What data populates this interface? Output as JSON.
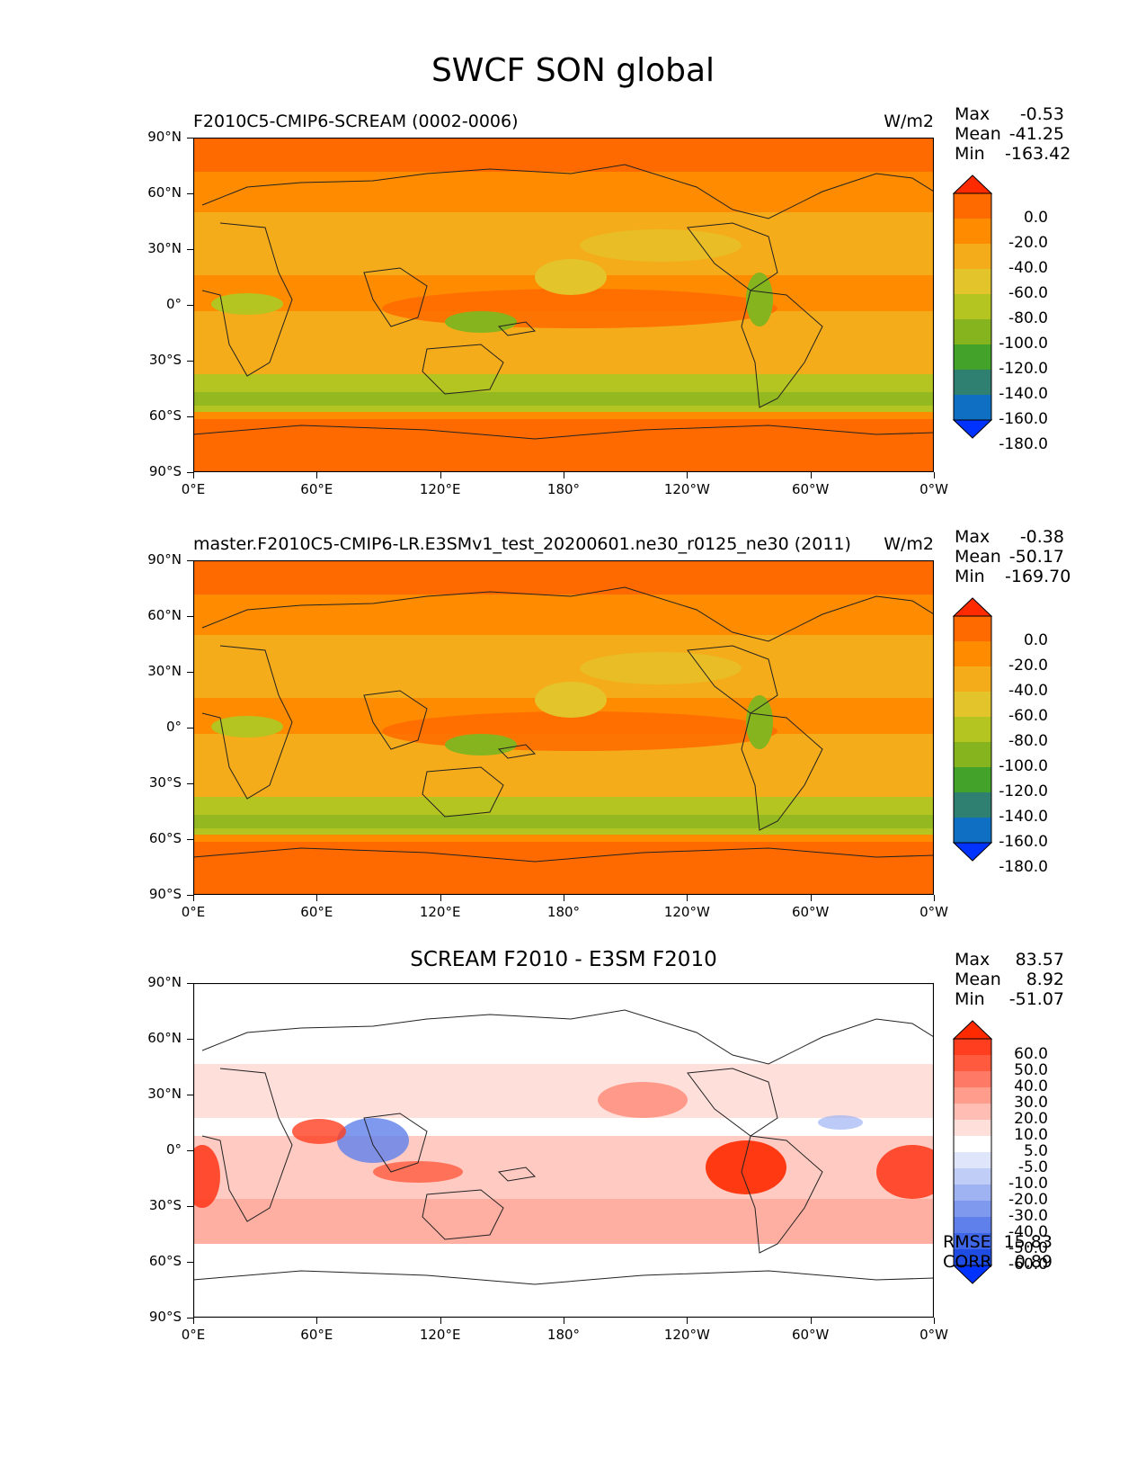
{
  "figure": {
    "title": "SWCF SON global"
  },
  "axes": {
    "lat_ticks": [
      "90°N",
      "60°N",
      "30°N",
      "0°",
      "30°S",
      "60°S",
      "90°S"
    ],
    "lon_ticks": [
      "0°E",
      "60°E",
      "120°E",
      "180°",
      "120°W",
      "60°W",
      "0°W"
    ]
  },
  "panels": [
    {
      "title_left": "F2010C5-CMIP6-SCREAM (0002-0006)",
      "title_center": "",
      "units": "W/m2",
      "stats": {
        "max_label": "Max",
        "max": "-0.53",
        "mean_label": "Mean",
        "mean": "-41.25",
        "min_label": "Min",
        "min": "-163.42"
      },
      "colorbar": {
        "ticks": [
          "0.0",
          "-20.0",
          "-40.0",
          "-60.0",
          "-80.0",
          "-100.0",
          "-120.0",
          "-140.0",
          "-160.0",
          "-180.0"
        ],
        "colors": [
          "#ff2a00",
          "#ff6a00",
          "#ff8c00",
          "#f5ac1a",
          "#e3c42b",
          "#b4c420",
          "#86b41f",
          "#43a22a",
          "#2f8070",
          "#0f6fc3",
          "#0033ff"
        ]
      },
      "map_palette": {
        "ocean": "#ff6a00",
        "warm": "#f5ac1a",
        "mid": "#e3c42b",
        "cool": "#b4c420",
        "green": "#86b41f"
      }
    },
    {
      "title_left": "master.F2010C5-CMIP6-LR.E3SMv1_test_20200601.ne30_r0125_ne30 (2011)",
      "title_center": "",
      "units": "W/m2",
      "stats": {
        "max_label": "Max",
        "max": "-0.38",
        "mean_label": "Mean",
        "mean": "-50.17",
        "min_label": "Min",
        "min": "-169.70"
      },
      "colorbar": {
        "ticks": [
          "0.0",
          "-20.0",
          "-40.0",
          "-60.0",
          "-80.0",
          "-100.0",
          "-120.0",
          "-140.0",
          "-160.0",
          "-180.0"
        ],
        "colors": [
          "#ff2a00",
          "#ff6a00",
          "#ff8c00",
          "#f5ac1a",
          "#e3c42b",
          "#b4c420",
          "#86b41f",
          "#43a22a",
          "#2f8070",
          "#0f6fc3",
          "#0033ff"
        ]
      },
      "map_palette": {
        "ocean": "#ff6a00",
        "warm": "#f5ac1a",
        "mid": "#e3c42b",
        "cool": "#b4c420",
        "green": "#86b41f"
      }
    },
    {
      "title_left": "",
      "title_center": "SCREAM F2010 - E3SM F2010",
      "units": "",
      "stats": {
        "max_label": "Max",
        "max": "83.57",
        "mean_label": "Mean",
        "mean": "8.92",
        "min_label": "Min",
        "min": "-51.07"
      },
      "colorbar": {
        "ticks": [
          "60.0",
          "50.0",
          "40.0",
          "30.0",
          "20.0",
          "10.0",
          "5.0",
          "-5.0",
          "-10.0",
          "-20.0",
          "-30.0",
          "-40.0",
          "-50.0",
          "-60.0"
        ],
        "colors": [
          "#ff2a00",
          "#ff3d1f",
          "#ff5a3d",
          "#ff7a66",
          "#ff9c8c",
          "#ffbdb3",
          "#ffdfda",
          "#ffffff",
          "#dfe6fb",
          "#bfcdf7",
          "#9fb3f3",
          "#7f99ef",
          "#5f80eb",
          "#3f66e7",
          "#1f4ce3",
          "#0033ff"
        ]
      },
      "map_palette": {
        "ocean": "#ffffff",
        "warm": "#ffbdb3",
        "mid": "#ff7a66",
        "cool": "#bfcdf7",
        "green": "#ff3d1f"
      }
    }
  ],
  "footer_stats": {
    "rmse_label": "RMSE",
    "rmse": "15.83",
    "corr_label": "CORR",
    "corr": "0.89"
  }
}
